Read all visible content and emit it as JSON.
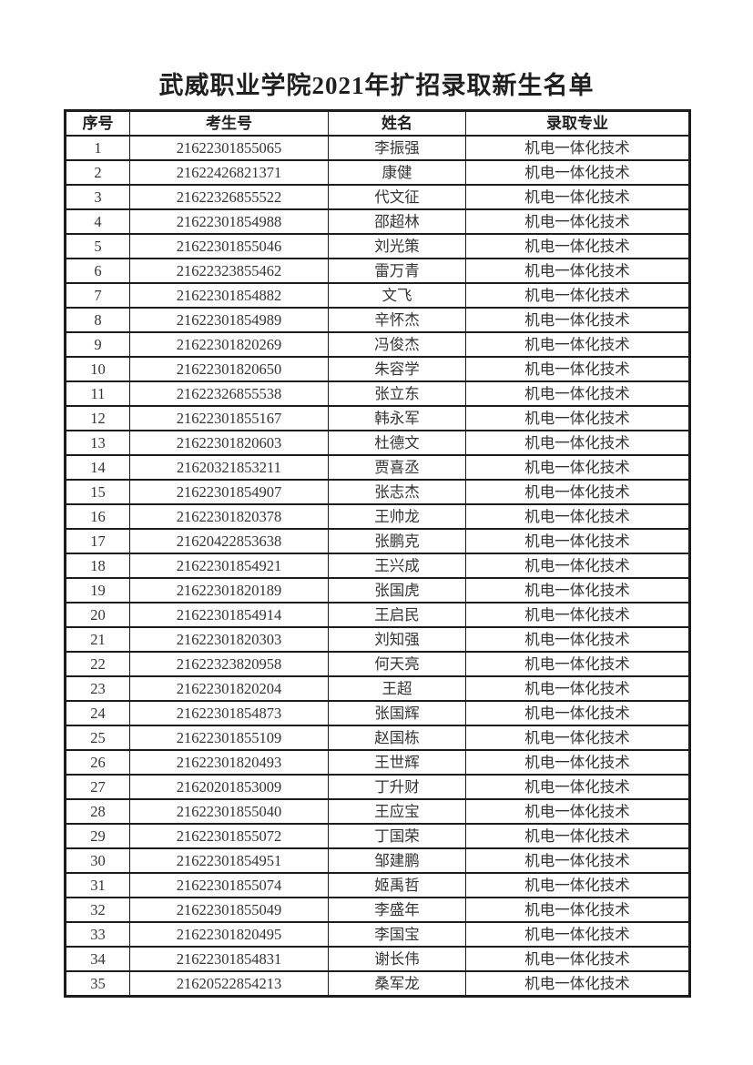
{
  "page": {
    "title": "武威职业学院2021年扩招录取新生名单"
  },
  "table": {
    "headers": {
      "index": "序号",
      "exam_no": "考生号",
      "name": "姓名",
      "major": "录取专业"
    },
    "rows": [
      {
        "no": "1",
        "exam_no": "21622301855065",
        "name": "李振强",
        "major": "机电一体化技术"
      },
      {
        "no": "2",
        "exam_no": "21622426821371",
        "name": "康健",
        "major": "机电一体化技术"
      },
      {
        "no": "3",
        "exam_no": "21622326855522",
        "name": "代文征",
        "major": "机电一体化技术"
      },
      {
        "no": "4",
        "exam_no": "21622301854988",
        "name": "邵超林",
        "major": "机电一体化技术"
      },
      {
        "no": "5",
        "exam_no": "21622301855046",
        "name": "刘光策",
        "major": "机电一体化技术"
      },
      {
        "no": "6",
        "exam_no": "21622323855462",
        "name": "雷万青",
        "major": "机电一体化技术"
      },
      {
        "no": "7",
        "exam_no": "21622301854882",
        "name": "文飞",
        "major": "机电一体化技术"
      },
      {
        "no": "8",
        "exam_no": "21622301854989",
        "name": "辛怀杰",
        "major": "机电一体化技术"
      },
      {
        "no": "9",
        "exam_no": "21622301820269",
        "name": "冯俊杰",
        "major": "机电一体化技术"
      },
      {
        "no": "10",
        "exam_no": "21622301820650",
        "name": "朱容学",
        "major": "机电一体化技术"
      },
      {
        "no": "11",
        "exam_no": "21622326855538",
        "name": "张立东",
        "major": "机电一体化技术"
      },
      {
        "no": "12",
        "exam_no": "21622301855167",
        "name": "韩永军",
        "major": "机电一体化技术"
      },
      {
        "no": "13",
        "exam_no": "21622301820603",
        "name": "杜德文",
        "major": "机电一体化技术"
      },
      {
        "no": "14",
        "exam_no": "21620321853211",
        "name": "贾喜丞",
        "major": "机电一体化技术"
      },
      {
        "no": "15",
        "exam_no": "21622301854907",
        "name": "张志杰",
        "major": "机电一体化技术"
      },
      {
        "no": "16",
        "exam_no": "21622301820378",
        "name": "王帅龙",
        "major": "机电一体化技术"
      },
      {
        "no": "17",
        "exam_no": "21620422853638",
        "name": "张鹏克",
        "major": "机电一体化技术"
      },
      {
        "no": "18",
        "exam_no": "21622301854921",
        "name": "王兴成",
        "major": "机电一体化技术"
      },
      {
        "no": "19",
        "exam_no": "21622301820189",
        "name": "张国虎",
        "major": "机电一体化技术"
      },
      {
        "no": "20",
        "exam_no": "21622301854914",
        "name": "王启民",
        "major": "机电一体化技术"
      },
      {
        "no": "21",
        "exam_no": "21622301820303",
        "name": "刘知强",
        "major": "机电一体化技术"
      },
      {
        "no": "22",
        "exam_no": "21622323820958",
        "name": "何天亮",
        "major": "机电一体化技术"
      },
      {
        "no": "23",
        "exam_no": "21622301820204",
        "name": "王超",
        "major": "机电一体化技术"
      },
      {
        "no": "24",
        "exam_no": "21622301854873",
        "name": "张国辉",
        "major": "机电一体化技术"
      },
      {
        "no": "25",
        "exam_no": "21622301855109",
        "name": "赵国栋",
        "major": "机电一体化技术"
      },
      {
        "no": "26",
        "exam_no": "21622301820493",
        "name": "王世辉",
        "major": "机电一体化技术"
      },
      {
        "no": "27",
        "exam_no": "21620201853009",
        "name": "丁升财",
        "major": "机电一体化技术"
      },
      {
        "no": "28",
        "exam_no": "21622301855040",
        "name": "王应宝",
        "major": "机电一体化技术"
      },
      {
        "no": "29",
        "exam_no": "21622301855072",
        "name": "丁国荣",
        "major": "机电一体化技术"
      },
      {
        "no": "30",
        "exam_no": "21622301854951",
        "name": "邹建鹏",
        "major": "机电一体化技术"
      },
      {
        "no": "31",
        "exam_no": "21622301855074",
        "name": "姬禹哲",
        "major": "机电一体化技术"
      },
      {
        "no": "32",
        "exam_no": "21622301855049",
        "name": "李盛年",
        "major": "机电一体化技术"
      },
      {
        "no": "33",
        "exam_no": "21622301820495",
        "name": "李国宝",
        "major": "机电一体化技术"
      },
      {
        "no": "34",
        "exam_no": "21622301854831",
        "name": "谢长伟",
        "major": "机电一体化技术"
      },
      {
        "no": "35",
        "exam_no": "21620522854213",
        "name": "桑军龙",
        "major": "机电一体化技术"
      }
    ]
  },
  "colors": {
    "border": "#1c1c1c",
    "text": "#343434",
    "background": "#ffffff"
  }
}
